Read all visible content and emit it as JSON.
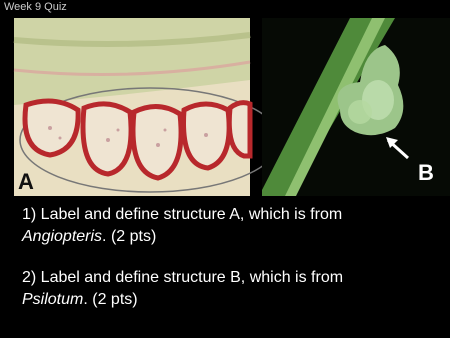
{
  "header": {
    "title": "Week 9 Quiz"
  },
  "figures": [
    {
      "label": "A"
    },
    {
      "label": "B"
    }
  ],
  "questions": [
    {
      "text": "1) Label and define structure A, which is from",
      "genus": "Angiopteris",
      "points": ". (2 pts)"
    },
    {
      "text": "2) Label and define structure B, which is from",
      "genus": "Psilotum",
      "points": ". (2 pts)"
    }
  ]
}
